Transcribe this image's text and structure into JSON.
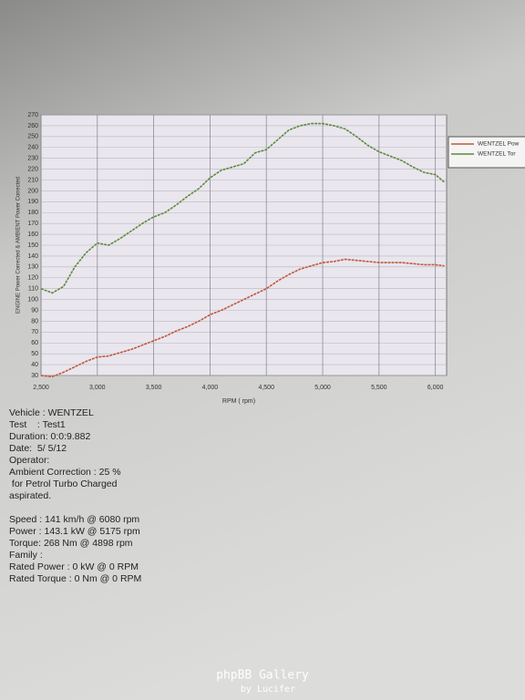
{
  "chart_data": {
    "type": "line",
    "y_label": "ENGINE Power Corrected & AMBIENT Power Corrected",
    "x_label": "RPM ( rpm)",
    "x": [
      2500,
      2600,
      2700,
      2800,
      2900,
      3000,
      3100,
      3200,
      3300,
      3400,
      3500,
      3600,
      3700,
      3800,
      3900,
      4000,
      4100,
      4200,
      4300,
      4400,
      4500,
      4600,
      4700,
      4800,
      4900,
      5000,
      5100,
      5200,
      5300,
      5400,
      5500,
      5600,
      5700,
      5800,
      5900,
      6000,
      6080
    ],
    "series": [
      {
        "name": "WENTZEL Pow",
        "color": "#c0583a",
        "values": [
          30,
          29,
          33,
          38,
          43,
          47,
          48,
          51,
          54,
          58,
          62,
          66,
          71,
          75,
          80,
          86,
          90,
          95,
          100,
          105,
          110,
          117,
          123,
          128,
          131,
          134,
          135,
          137,
          136,
          135,
          134,
          134,
          134,
          133,
          132,
          132,
          131
        ]
      },
      {
        "name": "WENTZEL Tor",
        "color": "#5e8a3a",
        "values": [
          110,
          106,
          112,
          130,
          143,
          152,
          150,
          156,
          163,
          170,
          176,
          180,
          187,
          195,
          202,
          212,
          219,
          222,
          225,
          235,
          238,
          247,
          256,
          260,
          262,
          262,
          260,
          257,
          250,
          242,
          236,
          232,
          228,
          222,
          217,
          215,
          208
        ]
      }
    ],
    "xlim": [
      2500,
      6100
    ],
    "xticks": [
      {
        "value": 2500,
        "label": "2,500"
      },
      {
        "value": 3000,
        "label": "3,000"
      },
      {
        "value": 3500,
        "label": "3,500"
      },
      {
        "value": 4000,
        "label": "4,000"
      },
      {
        "value": 4500,
        "label": "4,500"
      },
      {
        "value": 5000,
        "label": "5,000"
      },
      {
        "value": 5500,
        "label": "5,500"
      },
      {
        "value": 6000,
        "label": "6,000"
      }
    ],
    "ylim": [
      30,
      270
    ],
    "yticks": [
      30,
      40,
      50,
      60,
      70,
      80,
      90,
      100,
      110,
      120,
      130,
      140,
      150,
      160,
      170,
      180,
      190,
      200,
      210,
      220,
      230,
      240,
      250,
      260,
      270
    ],
    "grid": true
  },
  "info": [
    [
      "Vehicle : WENTZEL",
      "Test    : Test1",
      "Duration: 0:0:9.882",
      "Date:  5/ 5/12",
      "Operator:",
      "Ambient Correction : 25 %",
      " for Petrol Turbo Charged",
      "aspirated."
    ],
    [
      "Speed : 141 km/h @ 6080 rpm",
      "Power : 143.1 kW @ 5175 rpm",
      "Torque: 268 Nm @ 4898 rpm",
      "Family :",
      "Rated Power : 0 kW @ 0 RPM",
      "Rated Torque : 0 Nm @ 0 RPM"
    ]
  ],
  "watermark": {
    "title": "phpBB Gallery",
    "credit": "by Lucifer"
  }
}
